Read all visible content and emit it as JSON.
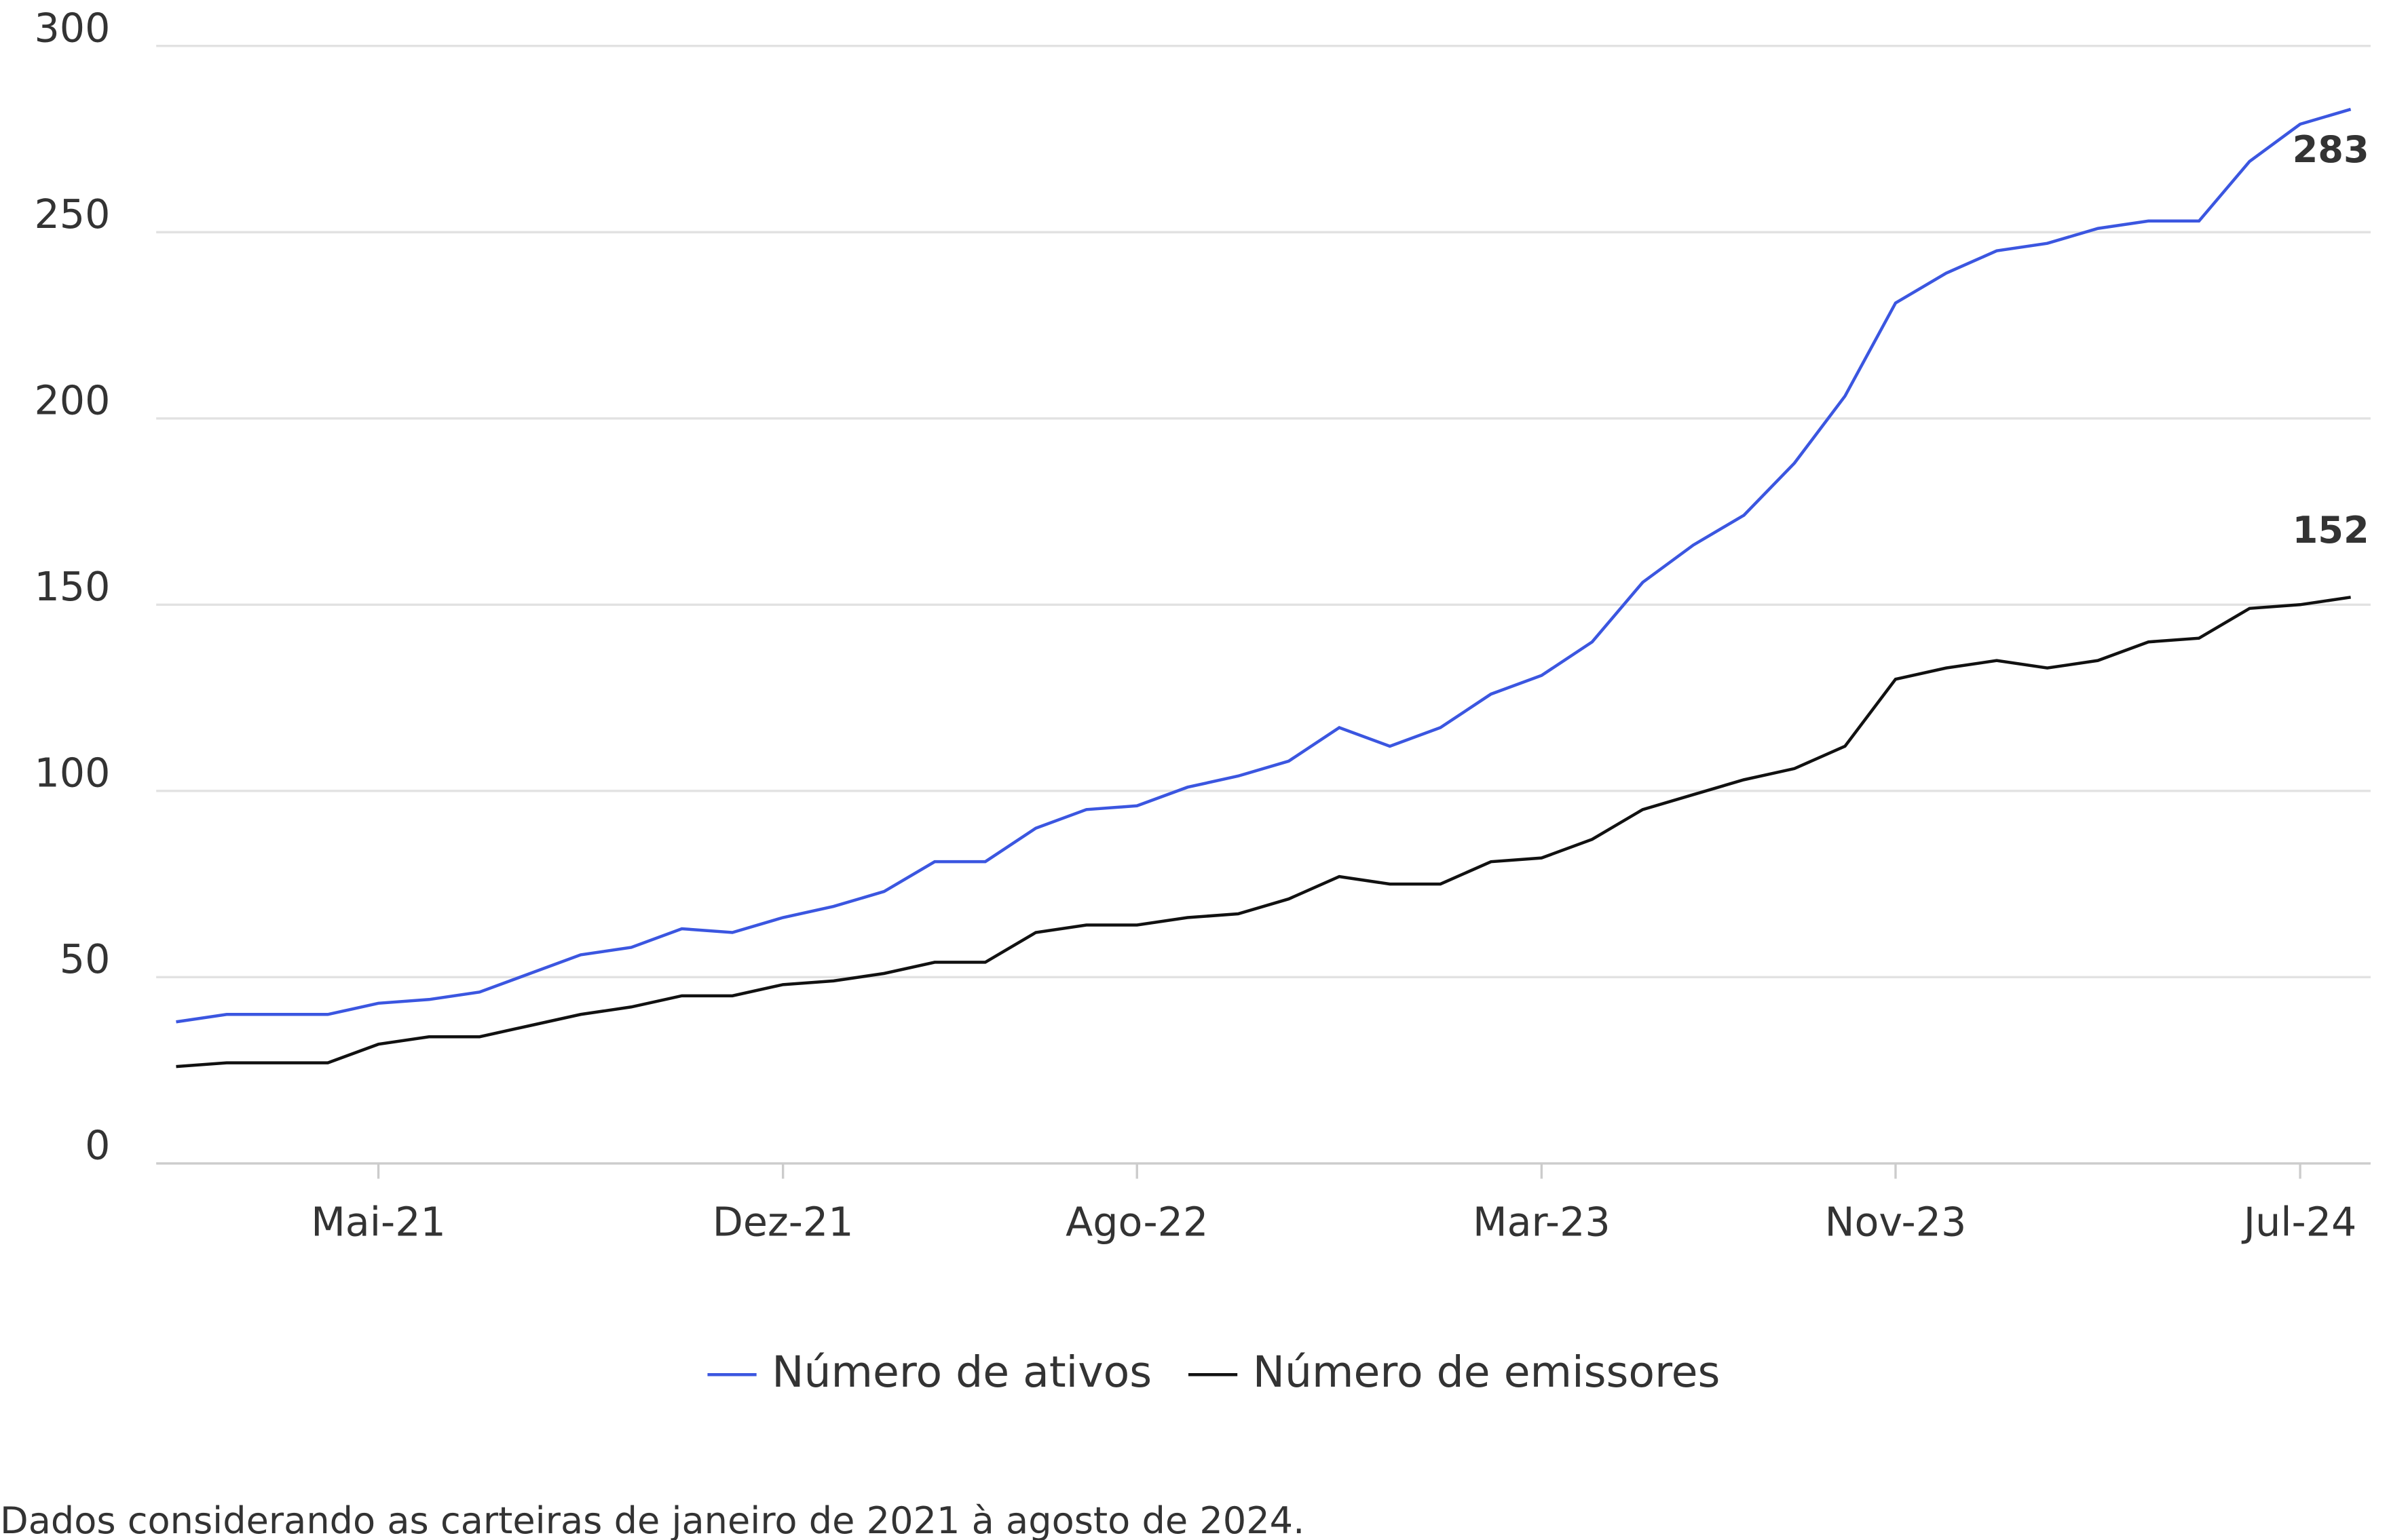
{
  "chart_data": {
    "type": "line",
    "categories": [
      null,
      null,
      null,
      null,
      "Mai-21",
      null,
      null,
      null,
      null,
      null,
      null,
      null,
      "Dez-21",
      null,
      null,
      null,
      null,
      null,
      null,
      "Ago-22",
      null,
      null,
      null,
      null,
      null,
      null,
      null,
      "Mar-23",
      null,
      null,
      null,
      null,
      null,
      null,
      "Nov-23",
      null,
      null,
      null,
      null,
      null,
      null,
      null,
      "Jul-24",
      null
    ],
    "series": [
      {
        "name": "Número de ativos",
        "color": "#3b56e0",
        "values": [
          38,
          40,
          40,
          40,
          43,
          44,
          46,
          51,
          56,
          58,
          63,
          62,
          66,
          69,
          73,
          81,
          81,
          90,
          95,
          96,
          101,
          104,
          108,
          117,
          112,
          117,
          126,
          131,
          140,
          156,
          166,
          174,
          188,
          206,
          231,
          239,
          245,
          247,
          251,
          253,
          253,
          269,
          279,
          283
        ]
      },
      {
        "name": "Número de emissores",
        "color": "#111111",
        "values": [
          26,
          27,
          27,
          27,
          32,
          34,
          34,
          37,
          40,
          42,
          45,
          45,
          48,
          49,
          51,
          54,
          54,
          62,
          64,
          64,
          66,
          67,
          71,
          77,
          75,
          75,
          81,
          82,
          87,
          95,
          99,
          103,
          106,
          112,
          130,
          133,
          135,
          133,
          135,
          140,
          141,
          149,
          150,
          152
        ]
      }
    ],
    "ylim": [
      0,
      300
    ],
    "yticks": [
      0,
      50,
      100,
      150,
      200,
      250,
      300
    ],
    "grid": true,
    "legend": "bottom",
    "footnote": "Dados considerando as carteiras de janeiro de 2021 à agosto de 2024."
  }
}
